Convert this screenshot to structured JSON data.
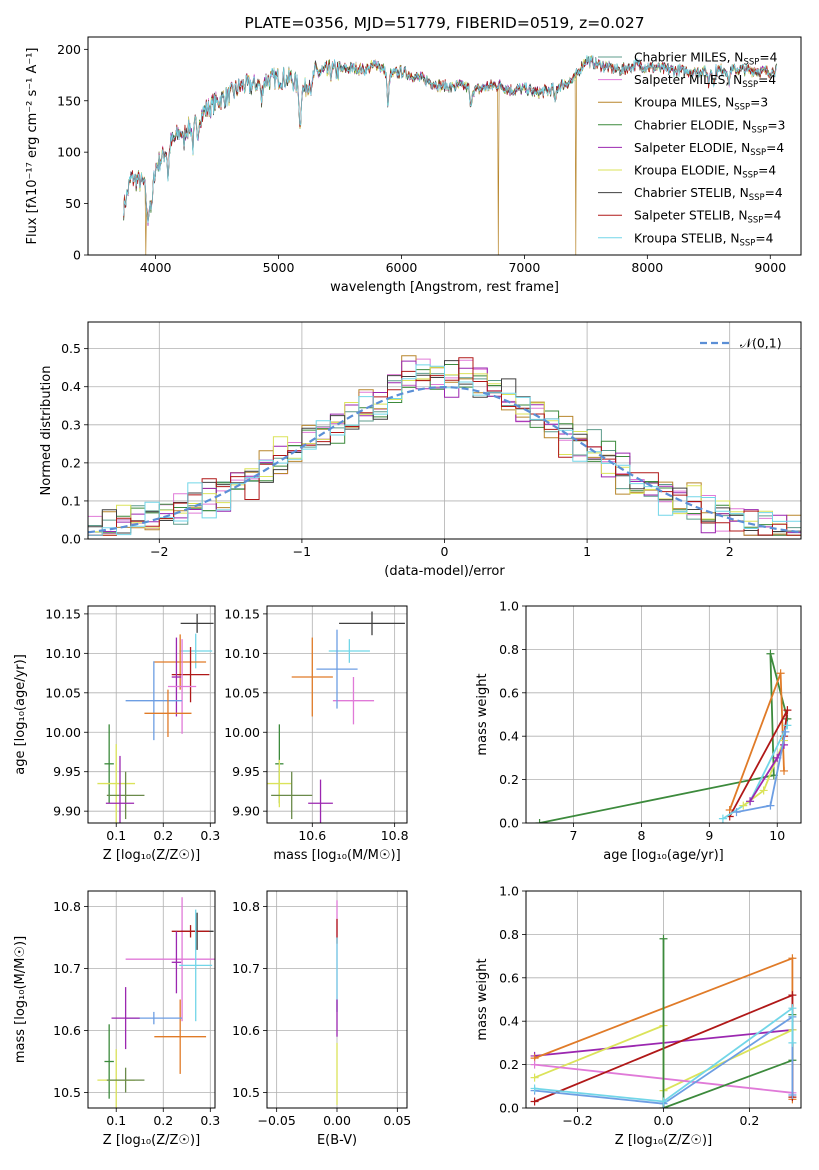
{
  "colors": {
    "Chabrier MILES": "#5f9c8c",
    "Salpeter MILES": "#e07ad8",
    "Kroupa MILES": "#b8862c",
    "Chabrier ELODIE": "#3c8a3c",
    "Salpeter ELODIE": "#9b27b0",
    "Kroupa ELODIE": "#dbe35a",
    "Chabrier STELIB": "#404040",
    "Salpeter STELIB": "#b01818",
    "Kroupa STELIB": "#72d6e8",
    "gauss": "#5b8fd6",
    "orange": "#e07b28",
    "blue": "#6d9ee3",
    "olive": "#6a8a4a",
    "lime": "#b8e04a"
  },
  "chart_data": [
    {
      "id": "spectrum",
      "type": "line",
      "title": "PLATE=0356, MJD=51779, FIBERID=0519, z=0.027",
      "xlabel": "wavelength [Angstrom, rest frame]",
      "ylabel": "Flux [fλ10⁻¹⁷ erg cm⁻² s⁻¹ A⁻¹]",
      "xlim": [
        3450,
        9250
      ],
      "ylim": [
        0,
        212
      ],
      "xticks": [
        "4000",
        "5000",
        "6000",
        "7000",
        "8000",
        "9000"
      ],
      "yticks": [
        "0",
        "50",
        "100",
        "150",
        "200"
      ],
      "legend_position": "right",
      "legend": [
        {
          "name": "Chabrier MILES",
          "nssp": "4"
        },
        {
          "name": "Salpeter MILES",
          "nssp": "4"
        },
        {
          "name": "Kroupa MILES",
          "nssp": "3"
        },
        {
          "name": "Chabrier ELODIE",
          "nssp": "3"
        },
        {
          "name": "Salpeter ELODIE",
          "nssp": "4"
        },
        {
          "name": "Kroupa ELODIE",
          "nssp": "4"
        },
        {
          "name": "Chabrier STELIB",
          "nssp": "4"
        },
        {
          "name": "Salpeter STELIB",
          "nssp": "4"
        },
        {
          "name": "Kroupa STELIB",
          "nssp": "4"
        }
      ],
      "continuum": [
        [
          3740,
          45
        ],
        [
          3800,
          75
        ],
        [
          3900,
          70
        ],
        [
          3950,
          50
        ],
        [
          4000,
          85
        ],
        [
          4100,
          105
        ],
        [
          4200,
          120
        ],
        [
          4300,
          125
        ],
        [
          4400,
          140
        ],
        [
          4500,
          150
        ],
        [
          4600,
          155
        ],
        [
          4700,
          165
        ],
        [
          4800,
          165
        ],
        [
          4900,
          170
        ],
        [
          5000,
          172
        ],
        [
          5100,
          172
        ],
        [
          5200,
          160
        ],
        [
          5300,
          178
        ],
        [
          5400,
          178
        ],
        [
          5500,
          180
        ],
        [
          5600,
          182
        ],
        [
          5700,
          180
        ],
        [
          5800,
          186
        ],
        [
          5900,
          175
        ],
        [
          6000,
          178
        ],
        [
          6100,
          174
        ],
        [
          6200,
          170
        ],
        [
          6300,
          165
        ],
        [
          6400,
          163
        ],
        [
          6500,
          165
        ],
        [
          6600,
          160
        ],
        [
          6700,
          164
        ],
        [
          6800,
          165
        ],
        [
          6900,
          160
        ],
        [
          7000,
          162
        ],
        [
          7100,
          158
        ],
        [
          7200,
          160
        ],
        [
          7300,
          165
        ],
        [
          7400,
          170
        ],
        [
          7500,
          190
        ],
        [
          7600,
          185
        ],
        [
          7700,
          182
        ],
        [
          7800,
          180
        ],
        [
          7900,
          185
        ],
        [
          8000,
          183
        ],
        [
          8200,
          180
        ],
        [
          8400,
          178
        ],
        [
          8600,
          180
        ],
        [
          8800,
          180
        ],
        [
          9000,
          178
        ],
        [
          9050,
          180
        ]
      ],
      "absorption": [
        [
          3934,
          25
        ],
        [
          3969,
          20
        ],
        [
          4102,
          30
        ],
        [
          4227,
          15
        ],
        [
          4304,
          20
        ],
        [
          4340,
          22
        ],
        [
          4861,
          20
        ],
        [
          5175,
          40
        ],
        [
          5270,
          15
        ],
        [
          5890,
          35
        ],
        [
          6563,
          20
        ],
        [
          7250,
          15
        ],
        [
          8498,
          12
        ],
        [
          8542,
          15
        ],
        [
          8662,
          15
        ]
      ],
      "dropouts": [
        {
          "x": 3920,
          "series": "Kroupa MILES"
        },
        {
          "x": 6790,
          "series": "Kroupa MILES"
        },
        {
          "x": 7420,
          "series": "Kroupa MILES"
        }
      ]
    },
    {
      "id": "residuals",
      "type": "step",
      "xlabel": "(data-model)/error",
      "ylabel": "Normed distribution",
      "xlim": [
        -2.5,
        2.5
      ],
      "ylim": [
        0,
        0.57
      ],
      "xticks": [
        "−2",
        "−1",
        "0",
        "1",
        "2"
      ],
      "yticks": [
        "0.0",
        "0.1",
        "0.2",
        "0.3",
        "0.4",
        "0.5"
      ],
      "gauss_label": "𝒩(0,1)",
      "bin_width": 0.1
    },
    {
      "id": "age-vs-Z",
      "type": "errorbar",
      "xlabel": "Z [log₁₀(Z/Z☉)]",
      "ylabel": "age  [log₁₀(age/yr)]",
      "xlim": [
        0.04,
        0.31
      ],
      "ylim": [
        9.885,
        10.16
      ],
      "xticks": [
        "0.1",
        "0.2",
        "0.3"
      ],
      "yticks": [
        "9.90",
        "9.95",
        "10.00",
        "10.05",
        "10.10",
        "10.15"
      ],
      "points": [
        {
          "c": "Chabrier STELIB",
          "x": 0.272,
          "xe": 0.035,
          "y": 10.138,
          "ye": 0.012
        },
        {
          "c": "Kroupa STELIB",
          "x": 0.269,
          "xe": 0.035,
          "y": 10.103,
          "ye": 0.022
        },
        {
          "c": "orange",
          "x": 0.236,
          "xe": 0.055,
          "y": 10.089,
          "ye": 0.035
        },
        {
          "c": "Salpeter STELIB",
          "x": 0.258,
          "xe": 0.04,
          "y": 10.073,
          "ye": 0.035
        },
        {
          "c": "Salpeter ELODIE",
          "x": 0.228,
          "xe": 0.01,
          "y": 10.07,
          "ye": 0.05
        },
        {
          "c": "Salpeter MILES",
          "x": 0.24,
          "xe": 0.03,
          "y": 10.058,
          "ye": 0.06
        },
        {
          "c": "blue",
          "x": 0.18,
          "xe": 0.06,
          "y": 10.04,
          "ye": 0.05
        },
        {
          "c": "orange",
          "x": 0.21,
          "xe": 0.05,
          "y": 10.024,
          "ye": 0.03
        },
        {
          "c": "Chabrier ELODIE",
          "x": 0.085,
          "xe": 0.01,
          "y": 9.96,
          "ye": 0.05
        },
        {
          "c": "Kroupa ELODIE",
          "x": 0.1,
          "xe": 0.04,
          "y": 9.935,
          "ye": 0.05
        },
        {
          "c": "olive",
          "x": 0.12,
          "xe": 0.04,
          "y": 9.92,
          "ye": 0.03
        },
        {
          "c": "Salpeter ELODIE",
          "x": 0.108,
          "xe": 0.03,
          "y": 9.91,
          "ye": 0.06
        }
      ]
    },
    {
      "id": "age-vs-mass",
      "type": "errorbar",
      "xlabel": "mass [log₁₀(M/M☉)]",
      "ylabel": "",
      "xlim": [
        10.49,
        10.83
      ],
      "ylim": [
        9.885,
        10.16
      ],
      "xticks": [
        "10.6",
        "10.8"
      ],
      "yticks": [
        "9.90",
        "9.95",
        "10.00",
        "10.05",
        "10.10",
        "10.15"
      ],
      "points": [
        {
          "c": "Chabrier STELIB",
          "x": 10.745,
          "xe": 0.08,
          "y": 10.138,
          "ye": 0.015
        },
        {
          "c": "Kroupa STELIB",
          "x": 10.69,
          "xe": 0.05,
          "y": 10.103,
          "ye": 0.015
        },
        {
          "c": "Salpeter MILES",
          "x": 10.7,
          "xe": 0.05,
          "y": 10.04,
          "ye": 0.03
        },
        {
          "c": "orange",
          "x": 10.6,
          "xe": 0.05,
          "y": 10.07,
          "ye": 0.05
        },
        {
          "c": "blue",
          "x": 10.66,
          "xe": 0.05,
          "y": 10.08,
          "ye": 0.05
        },
        {
          "c": "Chabrier ELODIE",
          "x": 10.52,
          "xe": 0.01,
          "y": 9.96,
          "ye": 0.05
        },
        {
          "c": "Kroupa ELODIE",
          "x": 10.52,
          "xe": 0.03,
          "y": 9.935,
          "ye": 0.03
        },
        {
          "c": "olive",
          "x": 10.55,
          "xe": 0.05,
          "y": 9.92,
          "ye": 0.03
        },
        {
          "c": "Salpeter ELODIE",
          "x": 10.62,
          "xe": 0.03,
          "y": 9.91,
          "ye": 0.03
        }
      ]
    },
    {
      "id": "weight-vs-age",
      "type": "line",
      "xlabel": "age  [log₁₀(age/yr)]",
      "ylabel": "mass weight",
      "xlim": [
        6.3,
        10.35
      ],
      "ylim": [
        0,
        1
      ],
      "xticks": [
        "7",
        "8",
        "9",
        "10"
      ],
      "yticks": [
        "0.0",
        "0.2",
        "0.4",
        "0.6",
        "0.8",
        "1.0"
      ],
      "series": [
        {
          "c": "Chabrier ELODIE",
          "pts": [
            [
              6.5,
              0.0
            ],
            [
              9.95,
              0.22
            ],
            [
              9.9,
              0.78
            ],
            [
              10.15,
              0.48
            ]
          ]
        },
        {
          "c": "orange",
          "pts": [
            [
              9.3,
              0.06
            ],
            [
              10.05,
              0.69
            ],
            [
              10.1,
              0.24
            ]
          ]
        },
        {
          "c": "Salpeter STELIB",
          "pts": [
            [
              9.3,
              0.03
            ],
            [
              10.15,
              0.52
            ],
            [
              10.1,
              0.4
            ]
          ]
        },
        {
          "c": "Kroupa STELIB",
          "pts": [
            [
              9.2,
              0.02
            ],
            [
              9.6,
              0.1
            ],
            [
              10.15,
              0.45
            ]
          ]
        },
        {
          "c": "Kroupa ELODIE",
          "pts": [
            [
              9.5,
              0.08
            ],
            [
              9.8,
              0.15
            ],
            [
              10.1,
              0.38
            ]
          ]
        },
        {
          "c": "Salpeter ELODIE",
          "pts": [
            [
              9.6,
              0.1
            ],
            [
              10.0,
              0.3
            ],
            [
              10.1,
              0.36
            ]
          ]
        },
        {
          "c": "blue",
          "pts": [
            [
              9.4,
              0.05
            ],
            [
              9.9,
              0.08
            ],
            [
              10.12,
              0.42
            ]
          ]
        }
      ]
    },
    {
      "id": "mass-vs-Z",
      "type": "errorbar",
      "xlabel": "Z [log₁₀(Z/Z☉)]",
      "ylabel": "mass [log₁₀(M/M☉)]",
      "xlim": [
        0.04,
        0.31
      ],
      "ylim": [
        10.475,
        10.825
      ],
      "xticks": [
        "0.1",
        "0.2",
        "0.3"
      ],
      "yticks": [
        "10.5",
        "10.6",
        "10.7",
        "10.8"
      ],
      "points": [
        {
          "c": "Salpeter MILES",
          "x": 0.24,
          "xe": 0.12,
          "y": 10.715,
          "ye": 0.1
        },
        {
          "c": "Chabrier STELIB",
          "x": 0.272,
          "xe": 0.035,
          "y": 10.76,
          "ye": 0.03
        },
        {
          "c": "Salpeter STELIB",
          "x": 0.258,
          "xe": 0.04,
          "y": 10.76,
          "ye": 0.01
        },
        {
          "c": "Kroupa STELIB",
          "x": 0.269,
          "xe": 0.035,
          "y": 10.705,
          "ye": 0.09
        },
        {
          "c": "Salpeter ELODIE",
          "x": 0.228,
          "xe": 0.01,
          "y": 10.71,
          "ye": 0.05
        },
        {
          "c": "orange",
          "x": 0.236,
          "xe": 0.055,
          "y": 10.59,
          "ye": 0.06
        },
        {
          "c": "blue",
          "x": 0.18,
          "xe": 0.06,
          "y": 10.62,
          "ye": 0.01
        },
        {
          "c": "Salpeter ELODIE",
          "x": 0.12,
          "xe": 0.03,
          "y": 10.62,
          "ye": 0.05
        },
        {
          "c": "Chabrier ELODIE",
          "x": 0.085,
          "xe": 0.01,
          "y": 10.55,
          "ye": 0.06
        },
        {
          "c": "Kroupa ELODIE",
          "x": 0.1,
          "xe": 0.04,
          "y": 10.52,
          "ye": 0.05
        },
        {
          "c": "olive",
          "x": 0.12,
          "xe": 0.04,
          "y": 10.52,
          "ye": 0.02
        }
      ]
    },
    {
      "id": "mass-vs-ebv",
      "type": "errorbar",
      "xlabel": "E(B-V)",
      "ylabel": "",
      "xlim": [
        -0.058,
        0.058
      ],
      "ylim": [
        10.475,
        10.825
      ],
      "xticks": [
        "−0.05",
        "0.00",
        "0.05"
      ],
      "yticks": [
        "10.5",
        "10.6",
        "10.7",
        "10.8"
      ],
      "points": [
        {
          "c": "Salpeter MILES",
          "x": 0,
          "xe": 0,
          "y": 10.72,
          "ye": 0.09
        },
        {
          "c": "Salpeter STELIB",
          "x": 0,
          "xe": 0,
          "y": 10.76,
          "ye": 0.02
        },
        {
          "c": "Kroupa STELIB",
          "x": 0,
          "xe": 0,
          "y": 10.69,
          "ye": 0.06
        },
        {
          "c": "Salpeter ELODIE",
          "x": 0,
          "xe": 0,
          "y": 10.62,
          "ye": 0.03
        },
        {
          "c": "Kroupa ELODIE",
          "x": 0,
          "xe": 0,
          "y": 10.53,
          "ye": 0.05
        }
      ]
    },
    {
      "id": "weight-vs-Z",
      "type": "line",
      "xlabel": "Z [log₁₀(Z/Z☉)]",
      "ylabel": "mass weight",
      "xlim": [
        -0.32,
        0.32
      ],
      "ylim": [
        0,
        1
      ],
      "xticks": [
        "−0.2",
        "0.0",
        "0.2"
      ],
      "yticks": [
        "0.0",
        "0.2",
        "0.4",
        "0.6",
        "0.8",
        "1.0"
      ],
      "series": [
        {
          "c": "Salpeter ELODIE",
          "pts": [
            [
              -0.3,
              0.24
            ],
            [
              0.3,
              0.36
            ]
          ]
        },
        {
          "c": "orange",
          "pts": [
            [
              -0.3,
              0.23
            ],
            [
              0.3,
              0.69
            ],
            [
              0.3,
              0.04
            ]
          ]
        },
        {
          "c": "Kroupa ELODIE",
          "pts": [
            [
              -0.3,
              0.14
            ],
            [
              0.0,
              0.38
            ],
            [
              0.0,
              0.08
            ],
            [
              0.3,
              0.36
            ]
          ]
        },
        {
          "c": "Salpeter MILES",
          "pts": [
            [
              -0.3,
              0.2
            ],
            [
              0.3,
              0.07
            ]
          ]
        },
        {
          "c": "Salpeter STELIB",
          "pts": [
            [
              -0.3,
              0.03
            ],
            [
              0.3,
              0.52
            ],
            [
              0.3,
              0.05
            ]
          ]
        },
        {
          "c": "Chabrier ELODIE",
          "pts": [
            [
              0.0,
              0.78
            ],
            [
              0.0,
              0.0
            ],
            [
              0.3,
              0.22
            ],
            [
              0.3,
              0.43
            ]
          ]
        },
        {
          "c": "blue",
          "pts": [
            [
              -0.3,
              0.08
            ],
            [
              0.0,
              0.02
            ],
            [
              0.3,
              0.42
            ],
            [
              0.3,
              0.06
            ]
          ]
        },
        {
          "c": "Kroupa STELIB",
          "pts": [
            [
              -0.3,
              0.09
            ],
            [
              0.0,
              0.03
            ],
            [
              0.3,
              0.46
            ],
            [
              0.3,
              0.3
            ]
          ]
        }
      ]
    }
  ]
}
